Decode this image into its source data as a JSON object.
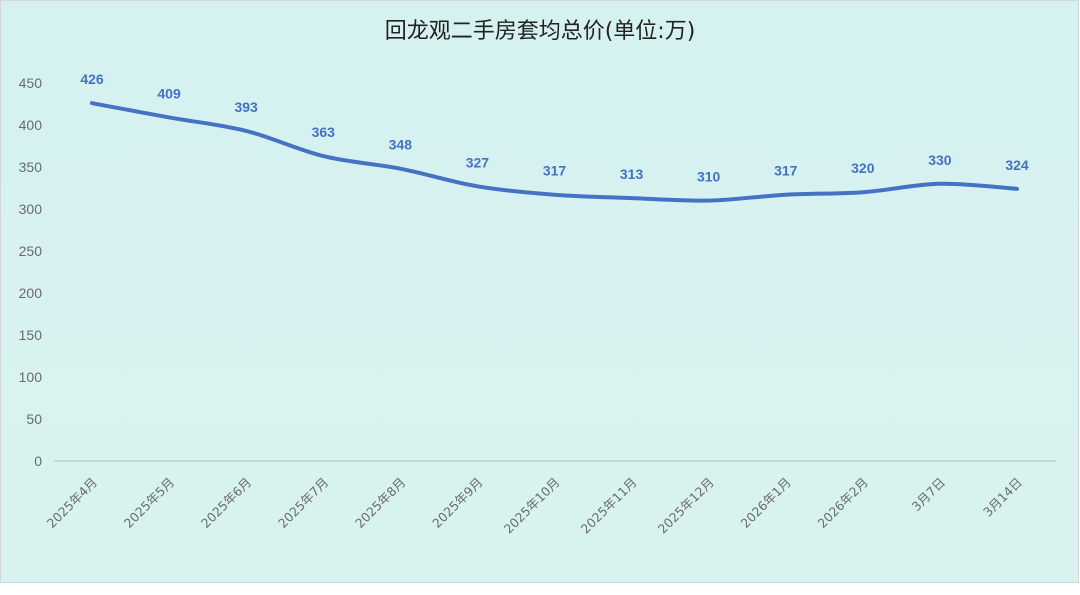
{
  "colors": {
    "background_top": "#d6f2f0",
    "background_bottom": "#d8f3ef",
    "line": "#4472c4",
    "drop_line": "#8faadc",
    "label": "#4472c4",
    "axis": "#bfc9d0",
    "frame": "#cfd8dc"
  },
  "chart_data": {
    "type": "line",
    "title": "回龙观二手房套均总价(单位:万)",
    "xlabel": "",
    "ylabel": "",
    "categories": [
      "2025年4月",
      "2025年5月",
      "2025年6月",
      "2025年7月",
      "2025年8月",
      "2025年9月",
      "2025年10月",
      "2025年11月",
      "2025年12月",
      "2026年1月",
      "2026年2月",
      "3月7日",
      "3月14日"
    ],
    "series": [
      {
        "values": [
          426,
          409,
          393,
          363,
          348,
          327,
          317,
          313,
          310,
          317,
          320,
          330,
          324
        ]
      }
    ],
    "ylim": [
      0,
      450
    ],
    "yticks": [
      "0",
      "50",
      "100",
      "150",
      "200",
      "250",
      "300",
      "350",
      "400",
      "450"
    ],
    "data_labels": [
      "426",
      "409",
      "393",
      "363",
      "348",
      "327",
      "317",
      "313",
      "310",
      "317",
      "320",
      "330",
      "324"
    ],
    "grid": false,
    "drop_lines": true,
    "smooth": true,
    "legend": "none"
  }
}
